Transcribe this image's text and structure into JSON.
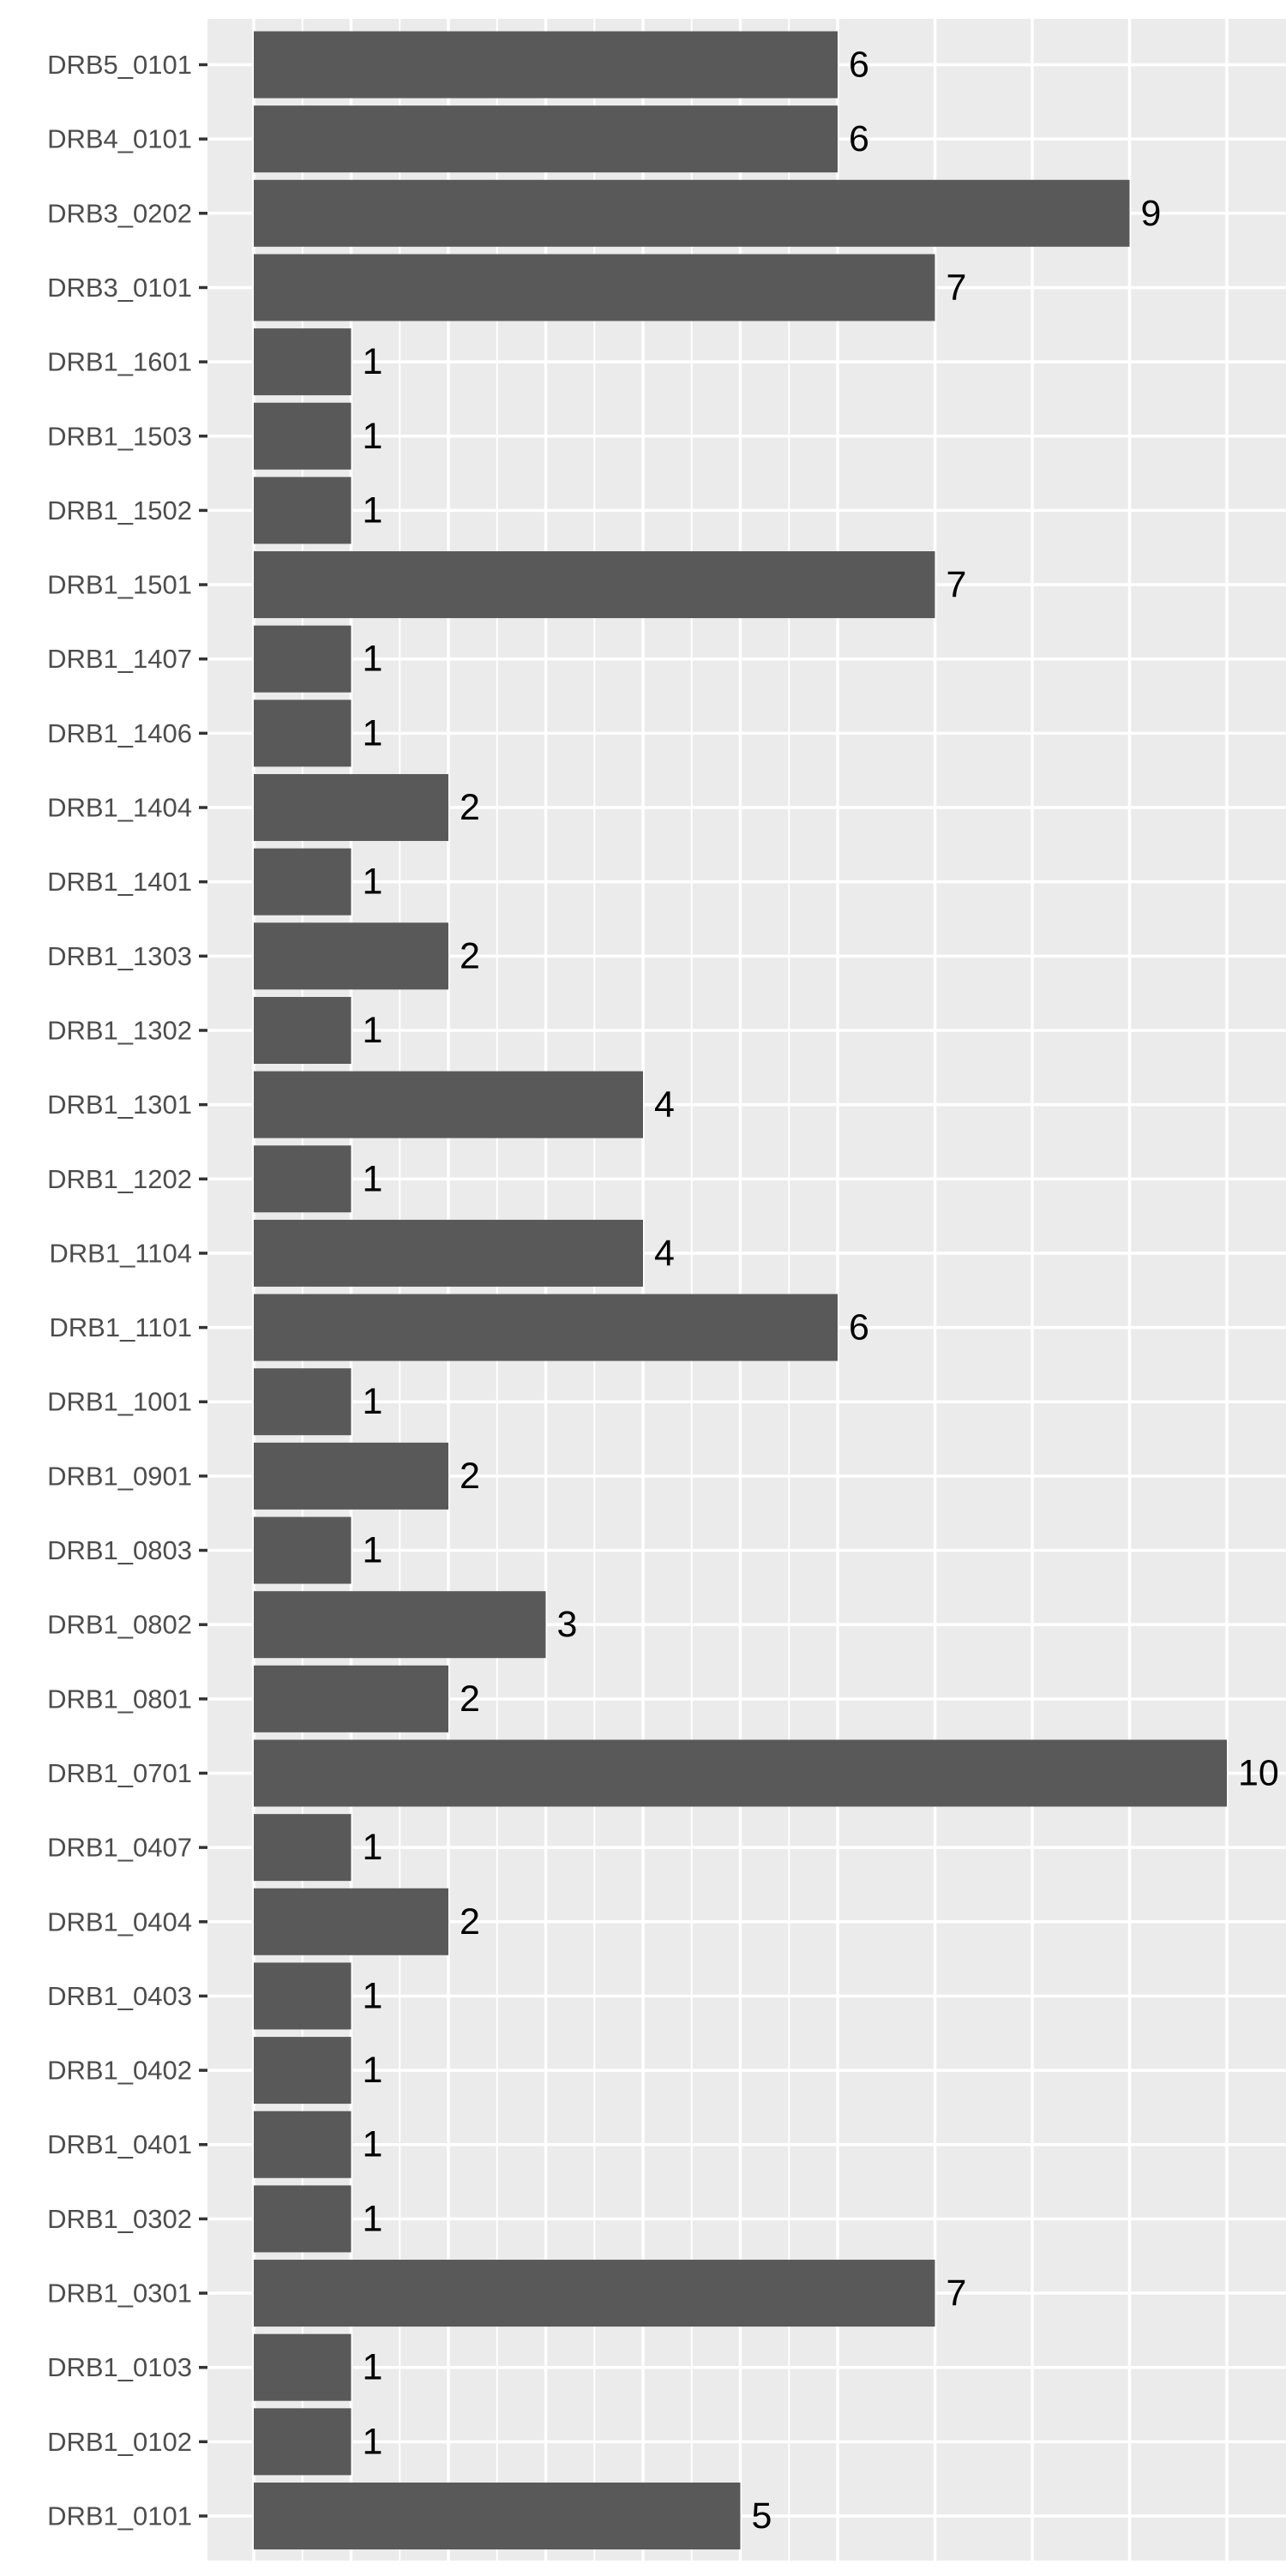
{
  "chart_data": {
    "type": "bar",
    "orientation": "horizontal",
    "title": "",
    "xlabel": "",
    "ylabel": "",
    "xlim": [
      0,
      10
    ],
    "grid": true,
    "legend": "none",
    "categories": [
      "DRB5_0101",
      "DRB4_0101",
      "DRB3_0202",
      "DRB3_0101",
      "DRB1_1601",
      "DRB1_1503",
      "DRB1_1502",
      "DRB1_1501",
      "DRB1_1407",
      "DRB1_1406",
      "DRB1_1404",
      "DRB1_1401",
      "DRB1_1303",
      "DRB1_1302",
      "DRB1_1301",
      "DRB1_1202",
      "DRB1_1104",
      "DRB1_1101",
      "DRB1_1001",
      "DRB1_0901",
      "DRB1_0803",
      "DRB1_0802",
      "DRB1_0801",
      "DRB1_0701",
      "DRB1_0407",
      "DRB1_0404",
      "DRB1_0403",
      "DRB1_0402",
      "DRB1_0401",
      "DRB1_0302",
      "DRB1_0301",
      "DRB1_0103",
      "DRB1_0102",
      "DRB1_0101"
    ],
    "values": [
      6,
      6,
      9,
      7,
      1,
      1,
      1,
      7,
      1,
      1,
      2,
      1,
      2,
      1,
      4,
      1,
      4,
      6,
      1,
      2,
      1,
      3,
      2,
      10,
      1,
      2,
      1,
      1,
      1,
      1,
      7,
      1,
      1,
      5
    ],
    "colors": {
      "panel_background": "#EBEBEB",
      "bar_fill": "#595959",
      "grid_line": "#FFFFFF",
      "tick_label": "#4D4D4D",
      "data_label": "#000000"
    }
  }
}
